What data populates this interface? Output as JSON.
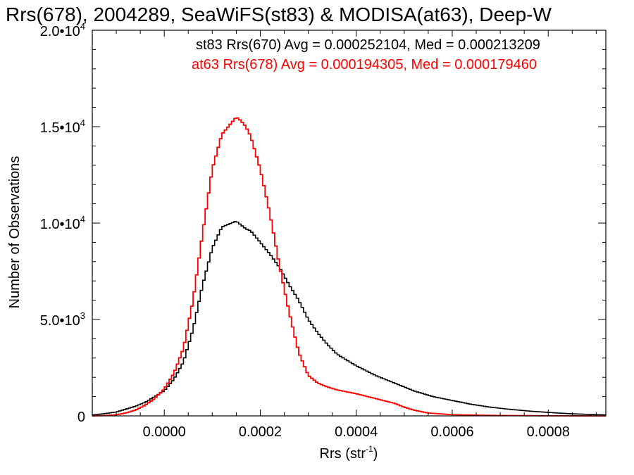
{
  "chart_data": {
    "type": "line",
    "title": "Rrs(678), 2004289, SeaWiFS(st83) & MODISA(at63), Deep-W",
    "xlabel": "Rrs (str",
    "xlabel_sup": "-1",
    "xlabel_close": ")",
    "ylabel": "Number of Observations",
    "xlim": [
      -0.00015,
      0.00092
    ],
    "ylim": [
      0,
      20000
    ],
    "x_ticks": [
      {
        "value": 0.0,
        "label": "0.0000"
      },
      {
        "value": 0.0002,
        "label": "0.0002"
      },
      {
        "value": 0.0004,
        "label": "0.0004"
      },
      {
        "value": 0.0006,
        "label": "0.0006"
      },
      {
        "value": 0.0008,
        "label": "0.0008"
      }
    ],
    "y_ticks": [
      {
        "value": 0,
        "label": "0",
        "sup": ""
      },
      {
        "value": 5000,
        "label": "5.0•10",
        "sup": "3"
      },
      {
        "value": 10000,
        "label": "1.0•10",
        "sup": "4"
      },
      {
        "value": 15000,
        "label": "1.5•10",
        "sup": "4"
      },
      {
        "value": 20000,
        "label": "2.0•10",
        "sup": "4"
      }
    ],
    "annotations": [
      {
        "text": "st83 Rrs(670) Avg = 0.000252104, Med = 0.000213209",
        "color": "#000000"
      },
      {
        "text": "at63 Rrs(678) Avg = 0.000194305, Med = 0.000179460",
        "color": "#ff0000"
      }
    ],
    "series": [
      {
        "color": "#000000",
        "x": [
          -0.00015,
          -0.00013,
          -0.0001,
          -8e-05,
          -6e-05,
          -4e-05,
          -2e-05,
          0.0,
          2e-05,
          4e-05,
          6e-05,
          8e-05,
          0.0001,
          0.00012,
          0.00014,
          0.00015,
          0.00016,
          0.00017,
          0.00018,
          0.0002,
          0.00022,
          0.00024,
          0.00026,
          0.00028,
          0.0003,
          0.00032,
          0.00034,
          0.00036,
          0.00038,
          0.0004,
          0.00044,
          0.00048,
          0.00052,
          0.00056,
          0.0006,
          0.00064,
          0.00068,
          0.00072,
          0.00076,
          0.0008,
          0.00084,
          0.00088,
          0.00092
        ],
        "values": [
          50,
          100,
          200,
          350,
          500,
          700,
          1000,
          1300,
          1900,
          2800,
          4500,
          6800,
          8700,
          9800,
          10000,
          10100,
          9900,
          9700,
          9600,
          9000,
          8400,
          7700,
          6800,
          6000,
          5000,
          4300,
          3700,
          3200,
          2900,
          2600,
          2100,
          1700,
          1300,
          1000,
          800,
          600,
          450,
          340,
          250,
          180,
          120,
          80,
          50
        ]
      },
      {
        "color": "#ff0000",
        "x": [
          -0.00015,
          -0.00012,
          -0.0001,
          -8e-05,
          -6e-05,
          -4e-05,
          -2e-05,
          0.0,
          2e-05,
          4e-05,
          6e-05,
          8e-05,
          0.0001,
          0.00012,
          0.00014,
          0.00015,
          0.00016,
          0.00017,
          0.00018,
          0.0002,
          0.00022,
          0.00024,
          0.00026,
          0.00028,
          0.0003,
          0.00032,
          0.00034,
          0.00036,
          0.00038,
          0.0004,
          0.00044,
          0.00048,
          0.0005,
          0.00052,
          0.00055,
          0.0006,
          0.0007,
          0.0008,
          0.00092
        ],
        "values": [
          0,
          20,
          60,
          150,
          300,
          550,
          900,
          1400,
          2200,
          3500,
          6000,
          9500,
          12800,
          14600,
          15200,
          15500,
          15300,
          15000,
          14500,
          12800,
          10500,
          7800,
          5400,
          3300,
          2100,
          1700,
          1500,
          1350,
          1250,
          1150,
          900,
          650,
          450,
          300,
          150,
          60,
          20,
          5,
          0
        ]
      }
    ]
  }
}
